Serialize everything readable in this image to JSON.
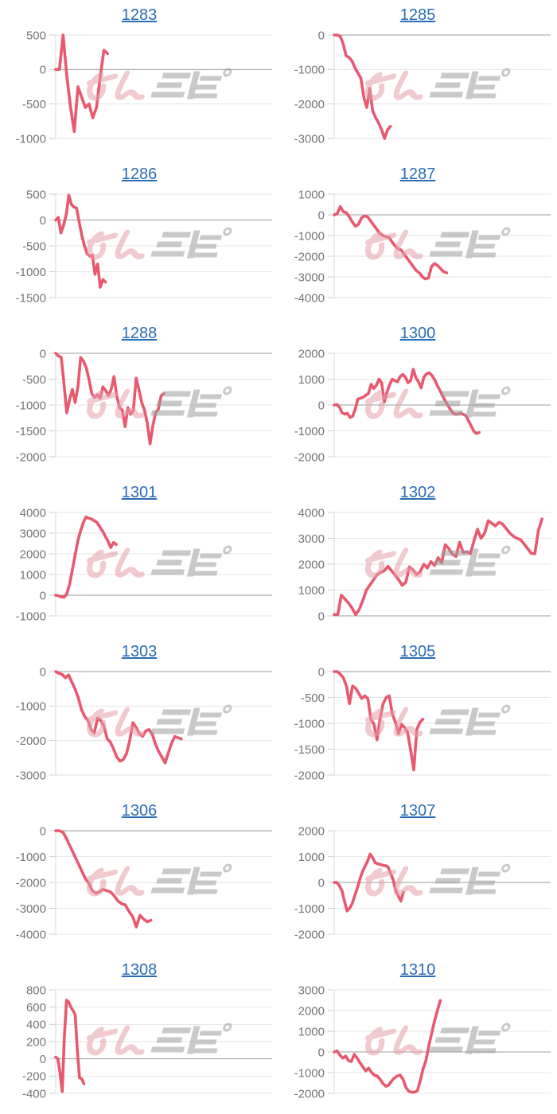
{
  "page": {
    "watermark": {
      "pink_text": "みん",
      "gray_text": "レポ"
    }
  },
  "colors": {
    "line": "#e8586e",
    "link": "#2a6db5",
    "tick_label": "#757575",
    "grid": "#e6e6e6",
    "zero_line": "#9e9e9e",
    "axis": "#d9d9d9",
    "tick_mark": "#cfcfcf",
    "watermark_pink": "#e5a0a8",
    "watermark_gray": "#9e9e9e"
  },
  "chart_data": [
    {
      "type": "line",
      "title": "1283",
      "ymax": 500,
      "ymin": -1000,
      "yticks": [
        500,
        0,
        -500,
        -1000
      ],
      "span": 0.24,
      "values": [
        0,
        0,
        500,
        -100,
        -550,
        -900,
        -250,
        -400,
        -550,
        -500,
        -700,
        -550,
        -100,
        280,
        230
      ]
    },
    {
      "type": "line",
      "title": "1285",
      "ymax": 0,
      "ymin": -3000,
      "yticks": [
        0,
        -1000,
        -2000,
        -3000
      ],
      "span": 0.26,
      "values": [
        0,
        0,
        -30,
        -250,
        -600,
        -650,
        -750,
        -950,
        -1100,
        -1250,
        -1800,
        -2100,
        -1550,
        -2200,
        -2400,
        -2550,
        -2750,
        -3000,
        -2750,
        -2650
      ]
    },
    {
      "type": "line",
      "title": "1286",
      "ymax": 500,
      "ymin": -1500,
      "yticks": [
        500,
        0,
        -500,
        -1000,
        -1500
      ],
      "span": 0.23,
      "values": [
        0,
        50,
        -250,
        -100,
        100,
        480,
        300,
        250,
        230,
        -50,
        -300,
        -500,
        -650,
        -700,
        -680,
        -1050,
        -850,
        -1300,
        -1150,
        -1200
      ]
    },
    {
      "type": "line",
      "title": "1287",
      "ymax": 1000,
      "ymin": -4000,
      "yticks": [
        1000,
        0,
        -1000,
        -2000,
        -3000,
        -4000
      ],
      "span": 0.52,
      "values": [
        0,
        50,
        400,
        150,
        100,
        -100,
        -350,
        -550,
        -450,
        -150,
        -50,
        -100,
        -300,
        -500,
        -700,
        -900,
        -1000,
        -1050,
        -1100,
        -1300,
        -1500,
        -1650,
        -1700,
        -1900,
        -2100,
        -2300,
        -2500,
        -2700,
        -2800,
        -3000,
        -3100,
        -3050,
        -2500,
        -2350,
        -2450,
        -2600,
        -2750,
        -2800
      ]
    },
    {
      "type": "line",
      "title": "1288",
      "ymax": 0,
      "ymin": -2000,
      "yticks": [
        0,
        -500,
        -1000,
        -1500,
        -2000
      ],
      "span": 0.5,
      "values": [
        0,
        -50,
        -80,
        -600,
        -1150,
        -900,
        -700,
        -950,
        -650,
        -80,
        -150,
        -280,
        -500,
        -780,
        -850,
        -800,
        -870,
        -650,
        -720,
        -820,
        -700,
        -450,
        -820,
        -1050,
        -1100,
        -1420,
        -1050,
        -1180,
        -1100,
        -480,
        -700,
        -950,
        -1100,
        -1350,
        -1750,
        -1400,
        -1150,
        -1080,
        -820,
        -780
      ]
    },
    {
      "type": "line",
      "title": "1300",
      "ymax": 2000,
      "ymin": -2000,
      "yticks": [
        2000,
        1000,
        0,
        -1000,
        -2000
      ],
      "span": 0.67,
      "values": [
        0,
        20,
        -80,
        -300,
        -350,
        -320,
        -480,
        -430,
        -150,
        230,
        260,
        300,
        380,
        450,
        800,
        640,
        760,
        1000,
        860,
        120,
        500,
        780,
        1000,
        940,
        900,
        1100,
        1180,
        1080,
        860,
        950,
        1380,
        1050,
        900,
        660,
        1080,
        1200,
        1250,
        1150,
        1000,
        780,
        580,
        380,
        180,
        0,
        -160,
        -300,
        -360,
        -350,
        -320,
        -360,
        -420,
        -620,
        -820,
        -1020,
        -1100,
        -1060
      ]
    },
    {
      "type": "line",
      "title": "1301",
      "ymax": 4000,
      "ymin": -1000,
      "yticks": [
        4000,
        3000,
        2000,
        1000,
        0,
        -1000
      ],
      "span": 0.28,
      "values": [
        0,
        -30,
        -80,
        -100,
        50,
        500,
        1200,
        1900,
        2600,
        3100,
        3500,
        3780,
        3720,
        3680,
        3600,
        3520,
        3300,
        3100,
        2850,
        2600,
        2300,
        2550,
        2450
      ]
    },
    {
      "type": "line",
      "title": "1302",
      "ymax": 4000,
      "ymin": 0,
      "yticks": [
        4000,
        3000,
        2000,
        1000,
        0
      ],
      "span": 0.96,
      "values": [
        50,
        50,
        800,
        650,
        500,
        300,
        50,
        250,
        600,
        1000,
        1200,
        1400,
        1600,
        1680,
        1750,
        1920,
        1750,
        1580,
        1400,
        1180,
        1300,
        1900,
        1780,
        1600,
        1700,
        2000,
        1850,
        2100,
        1950,
        2250,
        2050,
        2750,
        2600,
        2380,
        2300,
        2850,
        2450,
        2480,
        2400,
        2900,
        3350,
        3000,
        3200,
        3680,
        3580,
        3480,
        3620,
        3550,
        3380,
        3200,
        3080,
        3000,
        2950,
        2780,
        2600,
        2420,
        2400,
        3300,
        3750
      ]
    },
    {
      "type": "line",
      "title": "1303",
      "ymax": 0,
      "ymin": -3000,
      "yticks": [
        0,
        -1000,
        -2000,
        -3000
      ],
      "span": 0.58,
      "values": [
        0,
        -50,
        -80,
        -180,
        -100,
        -300,
        -500,
        -750,
        -1100,
        -1300,
        -1420,
        -1680,
        -1780,
        -1350,
        -1420,
        -1580,
        -1950,
        -2050,
        -2250,
        -2480,
        -2600,
        -2550,
        -2380,
        -2000,
        -1480,
        -1620,
        -1800,
        -1880,
        -1720,
        -1680,
        -1820,
        -2100,
        -2320,
        -2480,
        -2650,
        -2350,
        -2080,
        -1880,
        -1920,
        -1950
      ]
    },
    {
      "type": "line",
      "title": "1305",
      "ymax": 0,
      "ymin": -2000,
      "yticks": [
        0,
        -500,
        -1000,
        -1500,
        -2000
      ],
      "span": 0.41,
      "values": [
        0,
        0,
        -50,
        -120,
        -280,
        -620,
        -280,
        -320,
        -420,
        -520,
        -470,
        -520,
        -920,
        -1020,
        -1320,
        -900,
        -620,
        -500,
        -470,
        -820,
        -980,
        -1200,
        -1020,
        -1080,
        -1180,
        -1520,
        -1900,
        -1120,
        -980,
        -920
      ]
    },
    {
      "type": "line",
      "title": "1306",
      "ymax": 0,
      "ymin": -4000,
      "yticks": [
        0,
        -1000,
        -2000,
        -3000,
        -4000
      ],
      "span": 0.44,
      "values": [
        0,
        0,
        -60,
        -320,
        -620,
        -920,
        -1220,
        -1520,
        -1820,
        -2020,
        -2320,
        -2420,
        -2350,
        -2270,
        -2320,
        -2370,
        -2520,
        -2720,
        -2820,
        -2870,
        -3120,
        -3320,
        -3720,
        -3270,
        -3420,
        -3520,
        -3460
      ]
    },
    {
      "type": "line",
      "title": "1307",
      "ymax": 2000,
      "ymin": -2000,
      "yticks": [
        2000,
        1000,
        0,
        -1000,
        -2000
      ],
      "span": 0.32,
      "values": [
        0,
        0,
        -120,
        -320,
        -720,
        -1100,
        -1000,
        -820,
        -520,
        -220,
        120,
        420,
        620,
        820,
        1100,
        950,
        760,
        720,
        700,
        660,
        650,
        600,
        350,
        100,
        -320,
        -520,
        -720,
        -380
      ]
    },
    {
      "type": "line",
      "title": "1308",
      "ymax": 800,
      "ymin": -400,
      "yticks": [
        800,
        600,
        400,
        200,
        0,
        -200,
        -400
      ],
      "span": 0.13,
      "values": [
        20,
        0,
        -160,
        -380,
        260,
        680,
        660,
        600,
        560,
        510,
        100,
        -220,
        -230,
        -290
      ]
    },
    {
      "type": "line",
      "title": "1310",
      "ymax": 3000,
      "ymin": -2000,
      "yticks": [
        3000,
        2000,
        1000,
        0,
        -1000,
        -2000
      ],
      "span": 0.49,
      "values": [
        0,
        50,
        -150,
        -300,
        -200,
        -420,
        -460,
        -120,
        -300,
        -520,
        -720,
        -920,
        -780,
        -980,
        -1120,
        -1160,
        -1320,
        -1520,
        -1660,
        -1600,
        -1420,
        -1260,
        -1160,
        -1120,
        -1320,
        -1720,
        -1900,
        -1950,
        -1940,
        -1880,
        -1400,
        -820,
        -420,
        300,
        900,
        1500,
        2000,
        2480
      ]
    }
  ]
}
